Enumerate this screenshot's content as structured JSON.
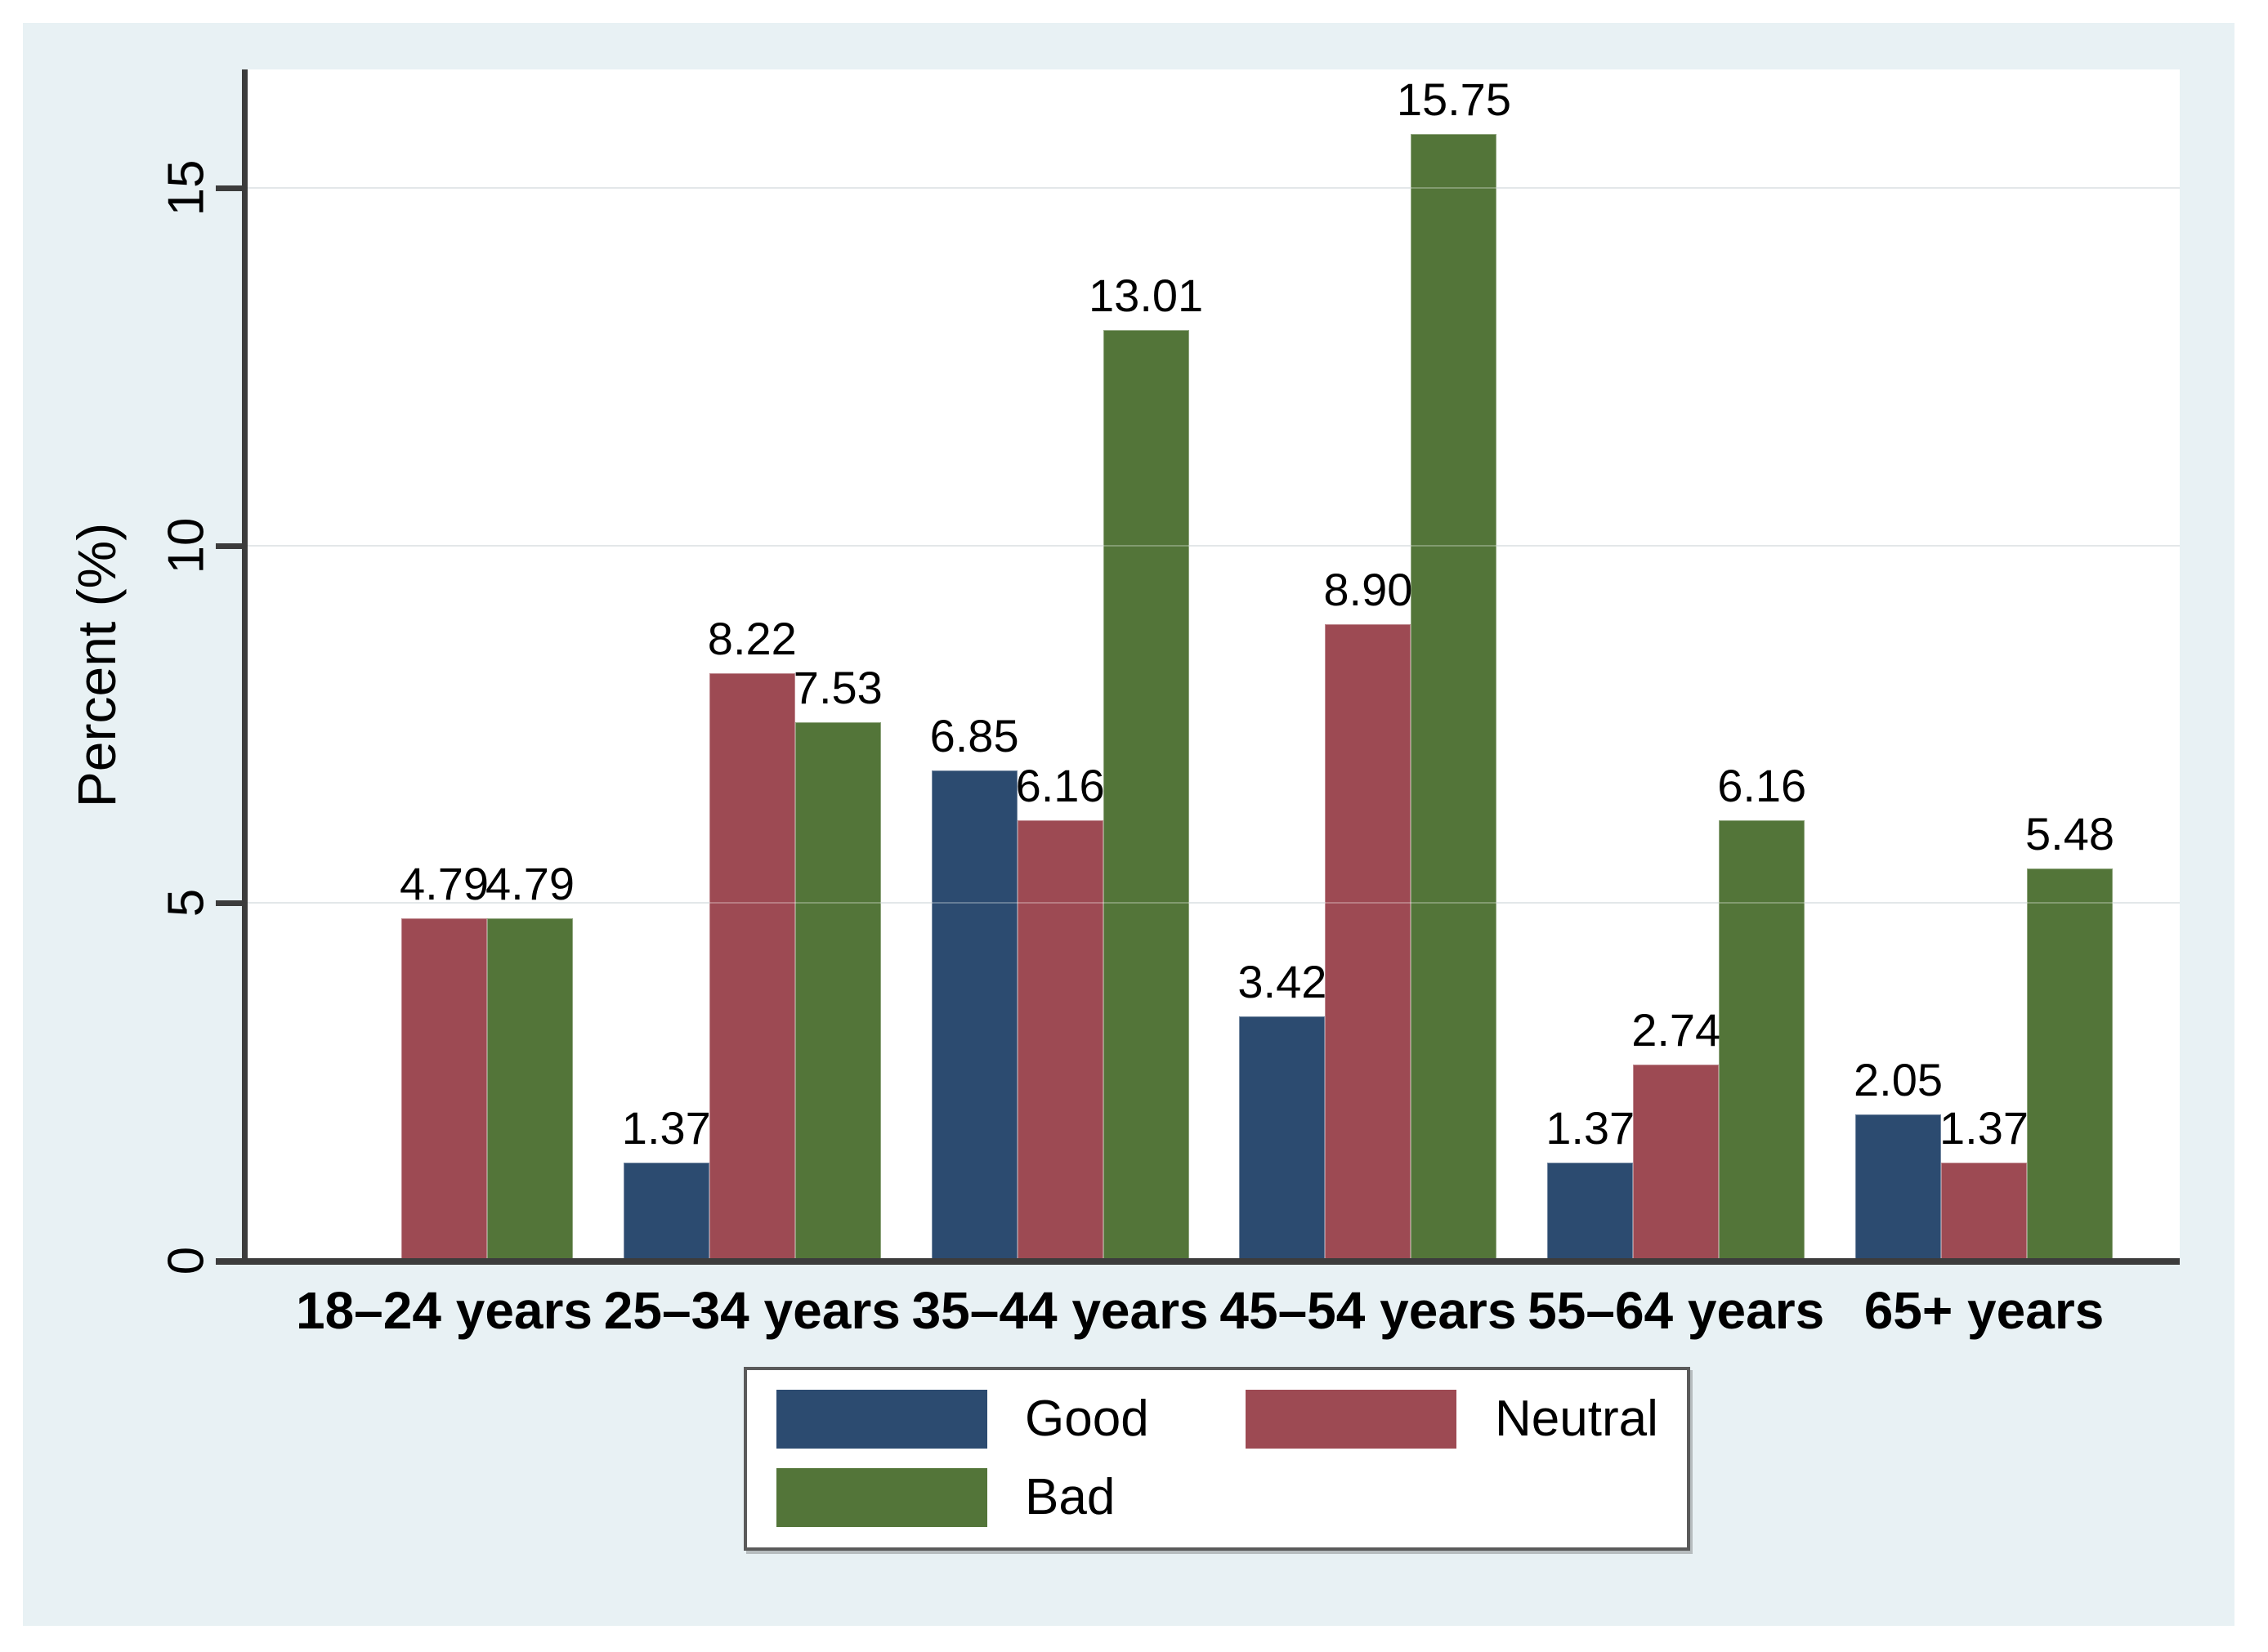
{
  "chart_data": {
    "type": "bar",
    "title": "",
    "categories": [
      "18–24 years",
      "25–34 years",
      "35–44 years",
      "45–54 years",
      "55–64 years",
      "65+ years"
    ],
    "series": [
      {
        "name": "Good",
        "color": "#2c4b70",
        "values": [
          0,
          1.37,
          6.85,
          3.42,
          1.37,
          2.05
        ]
      },
      {
        "name": "Neutral",
        "color": "#9d4a53",
        "values": [
          4.79,
          8.22,
          6.16,
          8.9,
          2.74,
          1.37
        ]
      },
      {
        "name": "Bad",
        "color": "#537539",
        "values": [
          4.79,
          7.53,
          13.01,
          15.75,
          6.16,
          5.48
        ]
      }
    ],
    "xlabel": "",
    "ylabel": "Percent (%)",
    "yticks": [
      0,
      5,
      10,
      15
    ],
    "ylim": [
      0,
      16.66
    ],
    "grid": true,
    "bar_value_labels": true,
    "value_label_decimals": 2,
    "legend_position": "bottom-center",
    "legend_rows": [
      [
        "Good",
        "Neutral"
      ],
      [
        "Bad"
      ]
    ]
  },
  "colors": {
    "figure_bg": "#ffffff",
    "panel_bg": "#e8f1f4",
    "plot_bg": "#ffffff",
    "axis": "#3c3c3c",
    "gridline": "#d9dee1",
    "text": "#000000",
    "legend_border": "#5a5a5a"
  }
}
